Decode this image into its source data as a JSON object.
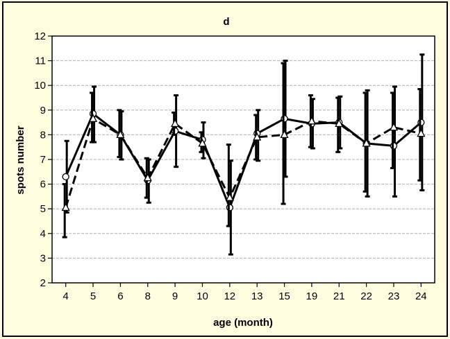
{
  "chart_data": {
    "type": "line",
    "title": "d",
    "xlabel": "age (month)",
    "ylabel": "spots number",
    "categories": [
      "4",
      "5",
      "6",
      "8",
      "9",
      "10",
      "12",
      "13",
      "15",
      "19",
      "21",
      "22",
      "23",
      "24"
    ],
    "ylim": [
      2,
      12
    ],
    "yticks": [
      2,
      3,
      4,
      5,
      6,
      7,
      8,
      9,
      10,
      11,
      12
    ],
    "grid": true,
    "legend": "none",
    "colors": {
      "background": "#fffde0",
      "plot": "#ffffff",
      "line": "#000000",
      "grid": "#b0b0b0"
    },
    "series": [
      {
        "line_style": "solid",
        "marker": "circle",
        "values": [
          6.3,
          8.85,
          8.0,
          6.15,
          8.15,
          7.8,
          5.05,
          8.05,
          8.65,
          8.45,
          8.5,
          7.65,
          7.55,
          8.5
        ],
        "error_low": [
          4.85,
          7.7,
          7.0,
          5.25,
          6.7,
          7.05,
          3.15,
          6.95,
          6.3,
          7.45,
          7.45,
          5.5,
          5.5,
          5.75
        ],
        "error_high": [
          7.75,
          9.95,
          8.95,
          7.0,
          9.6,
          8.5,
          6.95,
          9.0,
          11.0,
          9.45,
          9.55,
          9.8,
          9.95,
          11.25
        ]
      },
      {
        "line_style": "dashed",
        "marker": "triangle",
        "values": [
          5.05,
          8.65,
          8.0,
          6.25,
          8.45,
          7.65,
          5.45,
          7.9,
          8.0,
          8.55,
          8.45,
          7.65,
          8.3,
          8.05
        ],
        "error_low": [
          3.85,
          7.7,
          7.1,
          5.45,
          8.0,
          7.3,
          4.3,
          7.0,
          5.2,
          7.5,
          7.3,
          5.7,
          6.65,
          6.15
        ],
        "error_high": [
          6.0,
          9.7,
          9.0,
          7.05,
          8.9,
          8.1,
          7.6,
          8.8,
          10.9,
          9.6,
          9.5,
          9.7,
          9.7,
          9.85
        ]
      }
    ]
  }
}
